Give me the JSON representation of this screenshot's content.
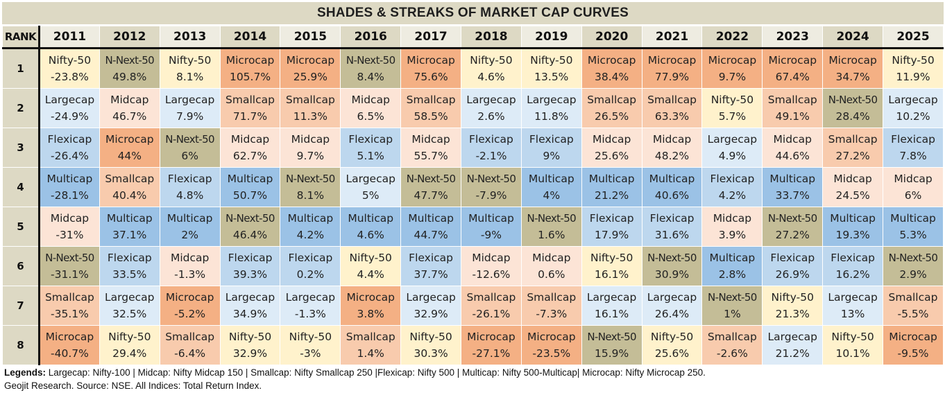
{
  "title": "SHADES & STREAKS OF MARKET CAP CURVES",
  "rank_header": "RANK",
  "years": [
    "2011",
    "2012",
    "2013",
    "2014",
    "2015",
    "2016",
    "2017",
    "2018",
    "2019",
    "2020",
    "2021",
    "2022",
    "2023",
    "2024",
    "2025"
  ],
  "category_colors": {
    "Nifty-50": "#FFF2CC",
    "N-Next-50": "#C4BD97",
    "Microcap": "#F4B084",
    "Smallcap": "#F8CBAD",
    "Midcap": "#FCE4D6",
    "Largecap": "#DDEBF7",
    "Flexicap": "#BDD7EE",
    "Multicap": "#9BC2E6"
  },
  "rows": [
    {
      "rank": "1",
      "cells": [
        {
          "name": "Nifty-50",
          "value": "-23.8%"
        },
        {
          "name": "N-Next-50",
          "value": "49.8%"
        },
        {
          "name": "Nifty-50",
          "value": "8.1%"
        },
        {
          "name": "Microcap",
          "value": "105.7%"
        },
        {
          "name": "Microcap",
          "value": "25.9%"
        },
        {
          "name": "N-Next-50",
          "value": "8.4%"
        },
        {
          "name": "Microcap",
          "value": "75.6%"
        },
        {
          "name": "Nifty-50",
          "value": "4.6%"
        },
        {
          "name": "Nifty-50",
          "value": "13.5%"
        },
        {
          "name": "Microcap",
          "value": "38.4%"
        },
        {
          "name": "Microcap",
          "value": "77.9%"
        },
        {
          "name": "Microcap",
          "value": "9.7%"
        },
        {
          "name": "Microcap",
          "value": "67.4%"
        },
        {
          "name": "Microcap",
          "value": "34.7%"
        },
        {
          "name": "Nifty-50",
          "value": "11.9%"
        }
      ]
    },
    {
      "rank": "2",
      "cells": [
        {
          "name": "Largecap",
          "value": "-24.9%"
        },
        {
          "name": "Midcap",
          "value": "46.7%"
        },
        {
          "name": "Largecap",
          "value": "7.9%"
        },
        {
          "name": "Smallcap",
          "value": "71.7%"
        },
        {
          "name": "Smallcap",
          "value": "11.3%"
        },
        {
          "name": "Midcap",
          "value": "6.5%"
        },
        {
          "name": "Smallcap",
          "value": "58.5%"
        },
        {
          "name": "Largecap",
          "value": "2.6%"
        },
        {
          "name": "Largecap",
          "value": "11.8%"
        },
        {
          "name": "Smallcap",
          "value": "26.5%"
        },
        {
          "name": "Smallcap",
          "value": "63.3%"
        },
        {
          "name": "Nifty-50",
          "value": "5.7%"
        },
        {
          "name": "Smallcap",
          "value": "49.1%"
        },
        {
          "name": "N-Next-50",
          "value": "28.4%"
        },
        {
          "name": "Largecap",
          "value": "10.2%"
        }
      ]
    },
    {
      "rank": "3",
      "cells": [
        {
          "name": "Flexicap",
          "value": "-26.4%"
        },
        {
          "name": "Microcap",
          "value": "44%"
        },
        {
          "name": "N-Next-50",
          "value": "6%"
        },
        {
          "name": "Midcap",
          "value": "62.7%"
        },
        {
          "name": "Midcap",
          "value": "9.7%"
        },
        {
          "name": "Flexicap",
          "value": "5.1%"
        },
        {
          "name": "Midcap",
          "value": "55.7%"
        },
        {
          "name": "Flexicap",
          "value": "-2.1%"
        },
        {
          "name": "Flexicap",
          "value": "9%"
        },
        {
          "name": "Midcap",
          "value": "25.6%"
        },
        {
          "name": "Midcap",
          "value": "48.2%"
        },
        {
          "name": "Largecap",
          "value": "4.9%"
        },
        {
          "name": "Midcap",
          "value": "44.6%"
        },
        {
          "name": "Smallcap",
          "value": "27.2%"
        },
        {
          "name": "Flexicap",
          "value": "7.8%"
        }
      ]
    },
    {
      "rank": "4",
      "cells": [
        {
          "name": "Multicap",
          "value": "-28.1%"
        },
        {
          "name": "Smallcap",
          "value": "40.4%"
        },
        {
          "name": "Flexicap",
          "value": "4.8%"
        },
        {
          "name": "Multicap",
          "value": "50.7%"
        },
        {
          "name": "N-Next-50",
          "value": "8.1%"
        },
        {
          "name": "Largecap",
          "value": "5%"
        },
        {
          "name": "N-Next-50",
          "value": "47.7%"
        },
        {
          "name": "N-Next-50",
          "value": "-7.9%"
        },
        {
          "name": "Multicap",
          "value": "4%"
        },
        {
          "name": "Multicap",
          "value": "21.2%"
        },
        {
          "name": "Multicap",
          "value": "40.6%"
        },
        {
          "name": "Flexicap",
          "value": "4.2%"
        },
        {
          "name": "Multicap",
          "value": "33.7%"
        },
        {
          "name": "Midcap",
          "value": "24.5%"
        },
        {
          "name": "Midcap",
          "value": "6%"
        }
      ]
    },
    {
      "rank": "5",
      "cells": [
        {
          "name": "Midcap",
          "value": "-31%"
        },
        {
          "name": "Multicap",
          "value": "37.1%"
        },
        {
          "name": "Multicap",
          "value": "2%"
        },
        {
          "name": "N-Next-50",
          "value": "46.4%"
        },
        {
          "name": "Multicap",
          "value": "4.2%"
        },
        {
          "name": "Multicap",
          "value": "4.6%"
        },
        {
          "name": "Multicap",
          "value": "44.7%"
        },
        {
          "name": "Multicap",
          "value": "-9%"
        },
        {
          "name": "N-Next-50",
          "value": "1.6%"
        },
        {
          "name": "Flexicap",
          "value": "17.9%"
        },
        {
          "name": "Flexicap",
          "value": "31.6%"
        },
        {
          "name": "Midcap",
          "value": "3.9%"
        },
        {
          "name": "N-Next-50",
          "value": "27.2%"
        },
        {
          "name": "Multicap",
          "value": "19.3%"
        },
        {
          "name": "Multicap",
          "value": "5.3%"
        }
      ]
    },
    {
      "rank": "6",
      "cells": [
        {
          "name": "N-Next-50",
          "value": "-31.1%"
        },
        {
          "name": "Flexicap",
          "value": "33.5%"
        },
        {
          "name": "Midcap",
          "value": "-1.3%"
        },
        {
          "name": "Flexicap",
          "value": "39.3%"
        },
        {
          "name": "Flexicap",
          "value": "0.2%"
        },
        {
          "name": "Nifty-50",
          "value": "4.4%"
        },
        {
          "name": "Flexicap",
          "value": "37.7%"
        },
        {
          "name": "Midcap",
          "value": "-12.6%"
        },
        {
          "name": "Midcap",
          "value": "0.6%"
        },
        {
          "name": "Nifty-50",
          "value": "16.1%"
        },
        {
          "name": "N-Next-50",
          "value": "30.9%"
        },
        {
          "name": "Multicap",
          "value": "2.8%"
        },
        {
          "name": "Flexicap",
          "value": "26.9%"
        },
        {
          "name": "Flexicap",
          "value": "16.2%"
        },
        {
          "name": "N-Next-50",
          "value": "2.9%"
        }
      ]
    },
    {
      "rank": "7",
      "cells": [
        {
          "name": "Smallcap",
          "value": "-35.1%"
        },
        {
          "name": "Largecap",
          "value": "32.5%"
        },
        {
          "name": "Microcap",
          "value": "-5.2%"
        },
        {
          "name": "Largecap",
          "value": "34.9%"
        },
        {
          "name": "Largecap",
          "value": "-1.3%"
        },
        {
          "name": "Microcap",
          "value": "3.8%"
        },
        {
          "name": "Largecap",
          "value": "32.9%"
        },
        {
          "name": "Smallcap",
          "value": "-26.1%"
        },
        {
          "name": "Smallcap",
          "value": "-7.3%"
        },
        {
          "name": "Largecap",
          "value": "16.1%"
        },
        {
          "name": "Largecap",
          "value": "26.4%"
        },
        {
          "name": "N-Next-50",
          "value": "1%"
        },
        {
          "name": "Nifty-50",
          "value": "21.3%"
        },
        {
          "name": "Largecap",
          "value": "13%"
        },
        {
          "name": "Smallcap",
          "value": "-5.5%"
        }
      ]
    },
    {
      "rank": "8",
      "cells": [
        {
          "name": "Microcap",
          "value": "-40.7%"
        },
        {
          "name": "Nifty-50",
          "value": "29.4%"
        },
        {
          "name": "Smallcap",
          "value": "-6.4%"
        },
        {
          "name": "Nifty-50",
          "value": "32.9%"
        },
        {
          "name": "Nifty-50",
          "value": "-3%"
        },
        {
          "name": "Smallcap",
          "value": "1.4%"
        },
        {
          "name": "Nifty-50",
          "value": "30.3%"
        },
        {
          "name": "Microcap",
          "value": "-27.1%"
        },
        {
          "name": "Microcap",
          "value": "-23.5%"
        },
        {
          "name": "N-Next-50",
          "value": "15.9%"
        },
        {
          "name": "Nifty-50",
          "value": "25.6%"
        },
        {
          "name": "Smallcap",
          "value": "-2.6%"
        },
        {
          "name": "Largecap",
          "value": "21.2%"
        },
        {
          "name": "Nifty-50",
          "value": "10.1%"
        },
        {
          "name": "Microcap",
          "value": "-9.5%"
        }
      ]
    }
  ],
  "footer": {
    "legend_label": "Legends:",
    "legend_text": " Largecap: Nifty-100 | Midcap: Nifty Midcap 150 | Smallcap: Nifty Smallcap 250 |Flexicap: Nifty 500 | Multicap: Nifty 500-Multicap| Microcap: Nifty Microcap 250.",
    "source": "Geojit Research. Source: NSE. All Indices: Total Return Index."
  }
}
